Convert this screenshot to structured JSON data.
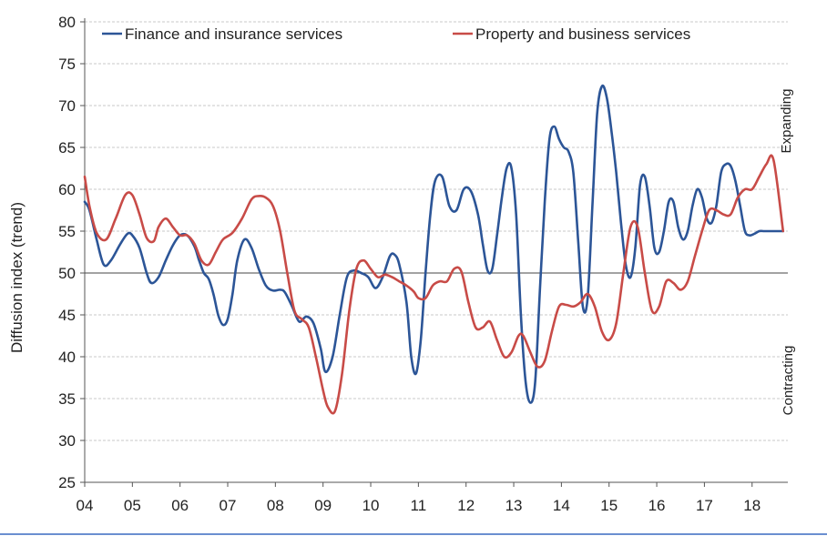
{
  "chart_data": {
    "type": "line",
    "ylabel": "Diffusion index (trend)",
    "ylim": [
      25,
      80
    ],
    "yticks": [
      25,
      30,
      35,
      40,
      45,
      50,
      55,
      60,
      65,
      70,
      75,
      80
    ],
    "xlim": [
      2004,
      2018.75
    ],
    "xticks": [
      {
        "label": "04",
        "value": 2004
      },
      {
        "label": "05",
        "value": 2005
      },
      {
        "label": "06",
        "value": 2006
      },
      {
        "label": "07",
        "value": 2007
      },
      {
        "label": "08",
        "value": 2008
      },
      {
        "label": "09",
        "value": 2009
      },
      {
        "label": "10",
        "value": 2010
      },
      {
        "label": "11",
        "value": 2011
      },
      {
        "label": "12",
        "value": 2012
      },
      {
        "label": "13",
        "value": 2013
      },
      {
        "label": "14",
        "value": 2014
      },
      {
        "label": "15",
        "value": 2015
      },
      {
        "label": "16",
        "value": 2016
      },
      {
        "label": "17",
        "value": 2017
      },
      {
        "label": "18",
        "value": 2018
      }
    ],
    "reference_line": 50,
    "annotations": {
      "upper": "Expanding",
      "lower": "Contracting"
    },
    "legend_position": "top",
    "series": [
      {
        "name": "Finance and insurance services",
        "color": "#2c5597",
        "x": [
          2004.0,
          2004.1,
          2004.25,
          2004.4,
          2004.55,
          2004.75,
          2004.9,
          2005.0,
          2005.15,
          2005.3,
          2005.4,
          2005.55,
          2005.7,
          2005.85,
          2006.0,
          2006.15,
          2006.3,
          2006.4,
          2006.5,
          2006.6,
          2006.7,
          2006.8,
          2006.9,
          2007.0,
          2007.1,
          2007.2,
          2007.35,
          2007.5,
          2007.65,
          2007.8,
          2007.95,
          2008.1,
          2008.2,
          2008.35,
          2008.5,
          2008.65,
          2008.8,
          2008.95,
          2009.05,
          2009.2,
          2009.35,
          2009.5,
          2009.65,
          2009.8,
          2009.95,
          2010.1,
          2010.25,
          2010.4,
          2010.5,
          2010.6,
          2010.75,
          2010.85,
          2010.95,
          2011.05,
          2011.15,
          2011.25,
          2011.35,
          2011.5,
          2011.65,
          2011.8,
          2011.95,
          2012.1,
          2012.25,
          2012.35,
          2012.45,
          2012.55,
          2012.65,
          2012.75,
          2012.85,
          2012.95,
          2013.05,
          2013.15,
          2013.25,
          2013.35,
          2013.45,
          2013.55,
          2013.65,
          2013.75,
          2013.85,
          2013.95,
          2014.05,
          2014.15,
          2014.25,
          2014.35,
          2014.45,
          2014.55,
          2014.65,
          2014.75,
          2014.85,
          2014.95,
          2015.05,
          2015.15,
          2015.25,
          2015.35,
          2015.45,
          2015.55,
          2015.65,
          2015.75,
          2015.85,
          2015.95,
          2016.05,
          2016.15,
          2016.25,
          2016.35,
          2016.45,
          2016.55,
          2016.65,
          2016.75,
          2016.85,
          2016.95,
          2017.05,
          2017.15,
          2017.25,
          2017.35,
          2017.45,
          2017.55,
          2017.65,
          2017.75,
          2017.85,
          2017.95,
          2018.05,
          2018.15,
          2018.25,
          2018.35,
          2018.45,
          2018.55,
          2018.65
        ],
        "values": [
          58.5,
          57.5,
          54.0,
          51.0,
          51.5,
          53.5,
          54.7,
          54.5,
          53.0,
          50.0,
          48.8,
          49.5,
          51.5,
          53.3,
          54.5,
          54.5,
          53.2,
          51.5,
          50.0,
          49.3,
          47.5,
          45.0,
          43.8,
          44.5,
          47.5,
          51.5,
          54.0,
          53.0,
          50.5,
          48.5,
          47.9,
          48.0,
          47.7,
          46.0,
          44.2,
          44.8,
          44.0,
          41.0,
          38.2,
          40.0,
          45.0,
          49.5,
          50.3,
          50.0,
          49.5,
          48.2,
          49.5,
          52.0,
          52.2,
          51.0,
          46.5,
          40.0,
          38.0,
          42.0,
          50.0,
          57.0,
          61.0,
          61.5,
          58.0,
          57.5,
          60.0,
          59.8,
          57.0,
          53.5,
          50.3,
          50.5,
          54.5,
          59.0,
          62.5,
          62.6,
          57.0,
          45.0,
          37.0,
          34.5,
          37.0,
          48.0,
          58.5,
          66.0,
          67.5,
          66.0,
          65.0,
          64.5,
          62.0,
          54.0,
          46.0,
          47.0,
          58.0,
          69.0,
          72.3,
          71.0,
          67.0,
          62.0,
          56.0,
          51.0,
          49.5,
          53.0,
          60.5,
          61.5,
          58.0,
          53.0,
          52.5,
          55.0,
          58.5,
          58.5,
          55.5,
          54.0,
          55.0,
          58.0,
          60.0,
          59.0,
          56.5,
          56.0,
          58.0,
          62.0,
          63.0,
          62.8,
          61.0,
          58.0,
          55.0,
          54.5,
          54.7,
          55.0,
          55.0,
          55.0,
          55.0,
          55.0,
          55.0
        ]
      },
      {
        "name": "Property and business services",
        "color": "#c84b47",
        "x": [
          2004.0,
          2004.1,
          2004.25,
          2004.45,
          2004.65,
          2004.85,
          2005.0,
          2005.15,
          2005.3,
          2005.45,
          2005.55,
          2005.7,
          2005.85,
          2006.0,
          2006.15,
          2006.3,
          2006.45,
          2006.6,
          2006.75,
          2006.9,
          2007.1,
          2007.3,
          2007.5,
          2007.65,
          2007.8,
          2007.95,
          2008.1,
          2008.25,
          2008.4,
          2008.55,
          2008.7,
          2008.85,
          2009.0,
          2009.1,
          2009.25,
          2009.4,
          2009.55,
          2009.7,
          2009.85,
          2010.0,
          2010.15,
          2010.3,
          2010.45,
          2010.6,
          2010.75,
          2010.9,
          2011.0,
          2011.15,
          2011.3,
          2011.45,
          2011.6,
          2011.75,
          2011.9,
          2012.05,
          2012.2,
          2012.35,
          2012.5,
          2012.65,
          2012.8,
          2012.95,
          2013.1,
          2013.2,
          2013.35,
          2013.5,
          2013.65,
          2013.8,
          2013.95,
          2014.1,
          2014.25,
          2014.4,
          2014.55,
          2014.7,
          2014.85,
          2015.0,
          2015.15,
          2015.3,
          2015.45,
          2015.6,
          2015.75,
          2015.9,
          2016.05,
          2016.2,
          2016.35,
          2016.5,
          2016.65,
          2016.8,
          2016.95,
          2017.1,
          2017.25,
          2017.4,
          2017.55,
          2017.7,
          2017.85,
          2018.0,
          2018.15,
          2018.3,
          2018.45,
          2018.65
        ],
        "values": [
          61.5,
          58.0,
          54.8,
          54.0,
          56.5,
          59.3,
          59.3,
          57.0,
          54.2,
          53.8,
          55.5,
          56.5,
          55.5,
          54.5,
          54.5,
          53.5,
          51.5,
          51.0,
          52.5,
          54.0,
          54.8,
          56.5,
          58.8,
          59.2,
          59.0,
          58.0,
          55.0,
          50.0,
          45.5,
          44.5,
          43.5,
          40.0,
          36.0,
          34.0,
          33.5,
          38.0,
          45.5,
          50.5,
          51.5,
          50.5,
          49.5,
          49.8,
          49.5,
          49.0,
          48.5,
          47.8,
          47.0,
          47.0,
          48.5,
          49.0,
          49.0,
          50.5,
          50.2,
          46.5,
          43.5,
          43.5,
          44.2,
          42.0,
          40.0,
          40.5,
          42.5,
          42.5,
          40.5,
          38.8,
          39.5,
          43.0,
          46.0,
          46.2,
          46.0,
          46.5,
          47.5,
          46.0,
          43.0,
          42.0,
          44.0,
          50.0,
          55.5,
          55.5,
          50.0,
          45.5,
          46.0,
          49.0,
          48.8,
          48.0,
          49.0,
          52.0,
          55.0,
          57.5,
          57.5,
          57.0,
          57.0,
          59.0,
          60.0,
          60.0,
          61.5,
          63.0,
          63.5,
          55.0
        ]
      }
    ]
  }
}
